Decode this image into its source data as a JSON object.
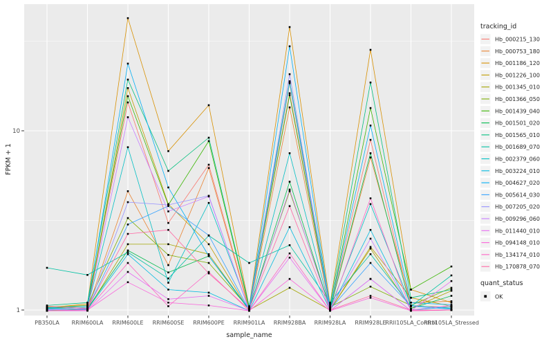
{
  "chart_data": {
    "type": "line",
    "title": "",
    "xlabel": "sample_name",
    "ylabel": "FPKM + 1",
    "y_scale": "log10",
    "grid": true,
    "panel_bg": "#EBEBEB",
    "gridline_color": "#FFFFFF",
    "marker_color": "#000000",
    "tick_color": "#333333",
    "ylim": [
      0.93,
      51
    ],
    "x_categories": [
      "PB350LA",
      "RRIM600LA",
      "RRIM600LE",
      "RRIM600SE",
      "RRIM600PE",
      "RRIM901LA",
      "RRIM928BA",
      "RRIM928LA",
      "RRIM928LE",
      "RRII105LA_Control",
      "RRII105LA_Stressed"
    ],
    "y_ticks": [
      {
        "label": "10",
        "value": 10
      },
      {
        "label": "1",
        "value": 1
      }
    ],
    "y_minor_values": [
      31.62,
      3.162
    ],
    "legend_tracking_title": "tracking_id",
    "legend_quant_title": "quant_status",
    "legend_quant_items": [
      {
        "label": "OK",
        "shape": "black-square"
      }
    ],
    "series": [
      {
        "name": "Hb_000215_130",
        "color": "#F8766D",
        "values": [
          1.02,
          1.03,
          14.4,
          3.06,
          6.47,
          1.02,
          16.2,
          1.03,
          8.9,
          1.05,
          1.04
        ]
      },
      {
        "name": "Hb_000753_180",
        "color": "#EA8331",
        "values": [
          1.0,
          1.01,
          4.6,
          1.78,
          6.2,
          1.0,
          13.5,
          1.01,
          7.1,
          1.1,
          1.12
        ]
      },
      {
        "name": "Hb_001186_120",
        "color": "#D89000",
        "values": [
          1.03,
          1.08,
          42.5,
          7.7,
          13.9,
          1.04,
          37.9,
          1.08,
          28.3,
          1.3,
          1.1
        ]
      },
      {
        "name": "Hb_001226_100",
        "color": "#C09B00",
        "values": [
          0.99,
          1.0,
          17.3,
          3.9,
          2.33,
          0.99,
          18.4,
          1.0,
          2.25,
          1.17,
          1.05
        ]
      },
      {
        "name": "Hb_001345_010",
        "color": "#A3A500",
        "values": [
          1.0,
          1.0,
          2.33,
          2.33,
          2.05,
          1.0,
          1.33,
          1.0,
          2.2,
          1.02,
          1.28
        ]
      },
      {
        "name": "Hb_001366_050",
        "color": "#7CAE00",
        "values": [
          1.04,
          1.06,
          3.26,
          2.03,
          1.83,
          1.02,
          4.6,
          1.04,
          1.35,
          1.06,
          1.33
        ]
      },
      {
        "name": "Hb_001439_040",
        "color": "#39B600",
        "values": [
          1.02,
          1.05,
          15.6,
          3.86,
          8.76,
          1.03,
          15.8,
          1.02,
          13.4,
          1.3,
          1.75
        ]
      },
      {
        "name": "Hb_001501_020",
        "color": "#00BB4E",
        "values": [
          1.0,
          1.02,
          2.15,
          1.62,
          2.0,
          1.0,
          5.2,
          1.01,
          7.5,
          1.02,
          1.2
        ]
      },
      {
        "name": "Hb_001565_010",
        "color": "#00BF7D",
        "values": [
          1.06,
          1.1,
          19.3,
          5.97,
          9.15,
          1.05,
          18.9,
          1.06,
          18.6,
          1.17,
          1.3
        ]
      },
      {
        "name": "Hb_001689_070",
        "color": "#00C1A3",
        "values": [
          1.72,
          1.57,
          2.1,
          1.5,
          2.6,
          1.83,
          2.3,
          1.1,
          2.05,
          1.05,
          1.56
        ]
      },
      {
        "name": "Hb_002379_060",
        "color": "#00BFC4",
        "values": [
          1.02,
          1.03,
          8.1,
          1.42,
          3.96,
          1.01,
          7.5,
          1.02,
          3.9,
          1.06,
          1.02
        ]
      },
      {
        "name": "Hb_003224_010",
        "color": "#00BAE0",
        "values": [
          1.0,
          1.01,
          2.05,
          1.3,
          1.25,
          0.99,
          2.9,
          1.0,
          2.8,
          1.0,
          1.04
        ]
      },
      {
        "name": "Hb_004627_020",
        "color": "#00B0F6",
        "values": [
          1.03,
          1.05,
          23.7,
          4.83,
          2.0,
          1.01,
          29.6,
          1.03,
          10.7,
          1.1,
          1.07
        ]
      },
      {
        "name": "Hb_005614_030",
        "color": "#35A2FF",
        "values": [
          1.01,
          1.01,
          3.0,
          3.8,
          2.61,
          1.0,
          18.6,
          1.01,
          1.83,
          1.05,
          1.01
        ]
      },
      {
        "name": "Hb_007205_020",
        "color": "#9590FF",
        "values": [
          0.99,
          1.0,
          4.0,
          3.86,
          4.34,
          0.99,
          20.7,
          0.99,
          1.49,
          0.99,
          1.0
        ]
      },
      {
        "name": "Hb_009296_060",
        "color": "#C77CFF",
        "values": [
          1.0,
          1.02,
          11.9,
          3.55,
          4.3,
          1.0,
          4.7,
          1.01,
          2.5,
          1.0,
          1.06
        ]
      },
      {
        "name": "Hb_011440_010",
        "color": "#E76BF3",
        "values": [
          0.99,
          0.99,
          1.63,
          1.15,
          1.2,
          0.99,
          1.96,
          0.99,
          1.49,
          0.99,
          1.45
        ]
      },
      {
        "name": "Hb_094148_010",
        "color": "#FA62DB",
        "values": [
          0.99,
          1.0,
          1.43,
          1.1,
          1.06,
          0.99,
          1.49,
          0.99,
          1.17,
          0.99,
          1.0
        ]
      },
      {
        "name": "Hb_134174_010",
        "color": "#FF61C3",
        "values": [
          0.99,
          1.0,
          1.83,
          1.05,
          1.63,
          0.99,
          2.07,
          0.99,
          4.2,
          0.99,
          1.0
        ]
      },
      {
        "name": "Hb_170878_070",
        "color": "#FF67A4",
        "values": [
          1.05,
          1.02,
          2.66,
          2.8,
          1.6,
          1.01,
          3.8,
          1.0,
          1.2,
          1.0,
          1.0
        ]
      }
    ]
  }
}
